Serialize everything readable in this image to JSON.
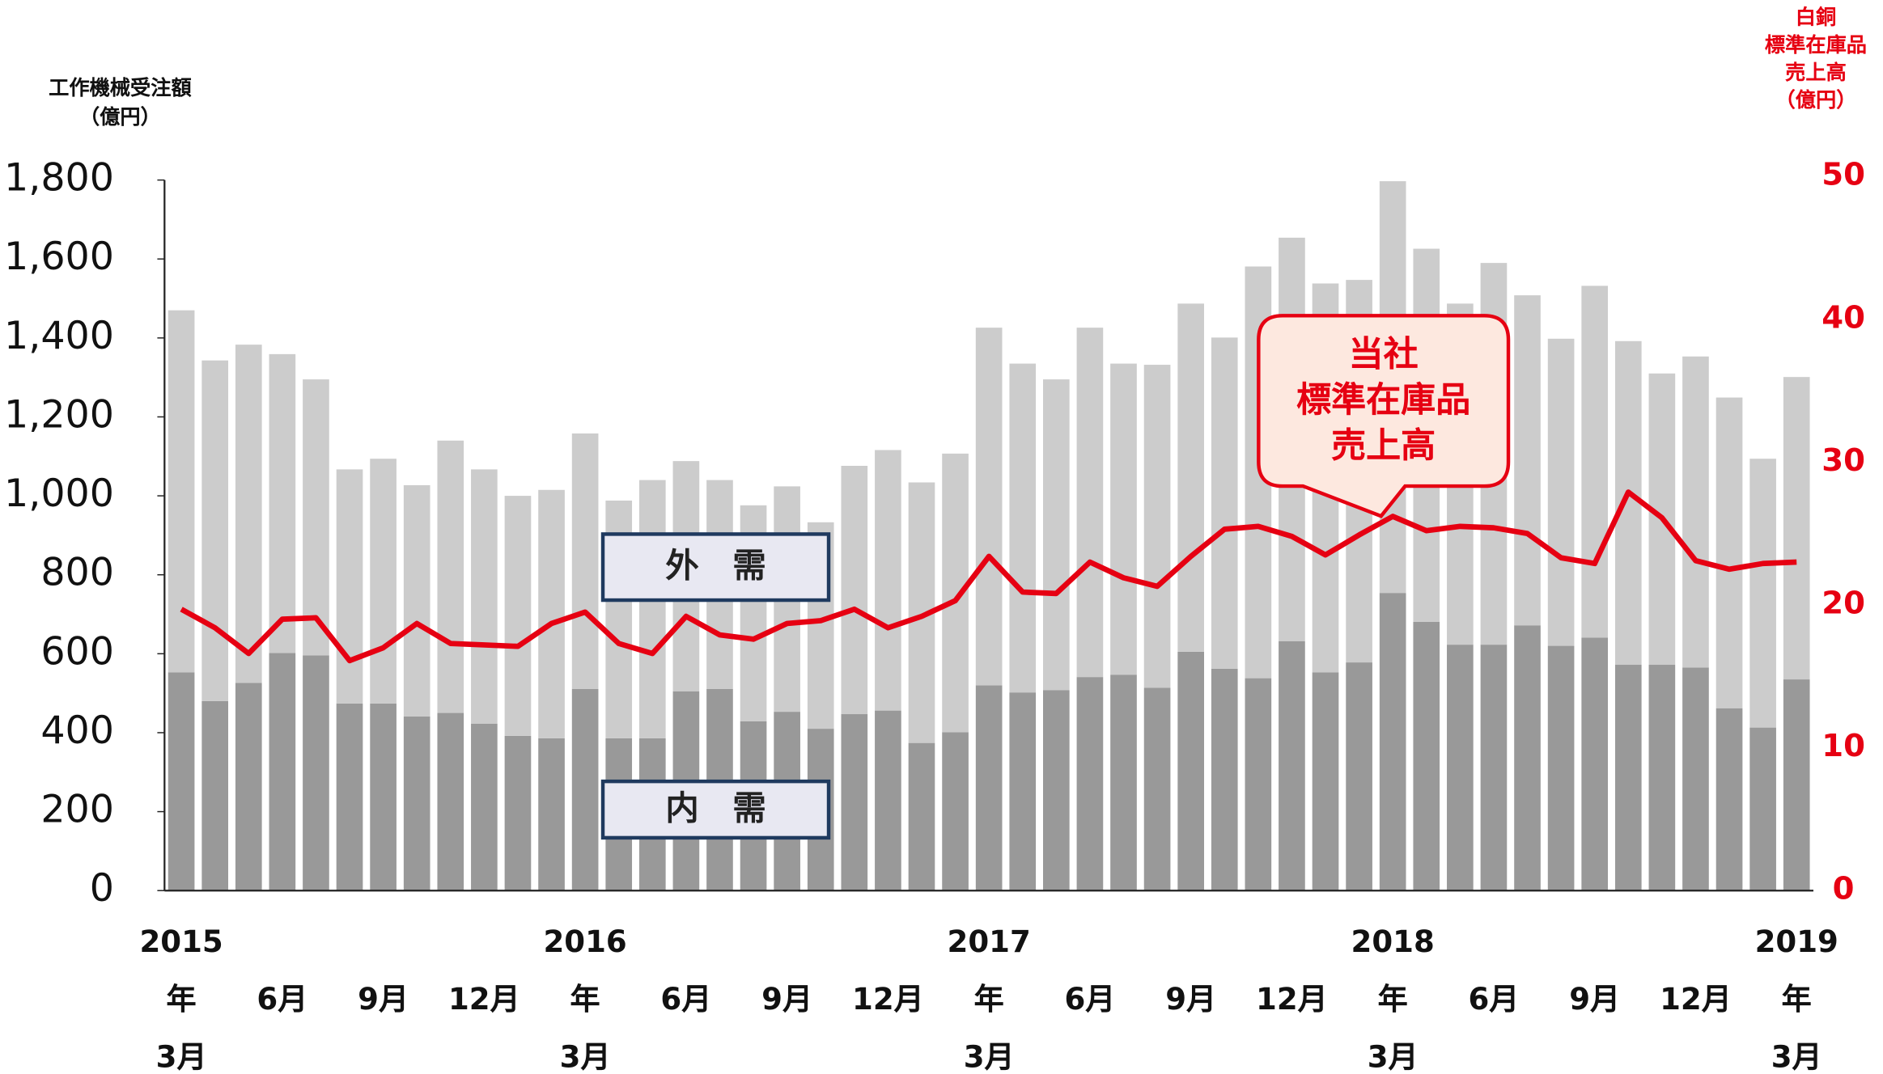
{
  "chart_data": {
    "type": "bar_line",
    "y_axis_label": "工作機械受注額\n（億円）",
    "y2_axis_label": "白銅\n標準在庫品\n売上高\n（億円）",
    "categories": [
      "2015\n年\n3月",
      null,
      null,
      "6月",
      null,
      null,
      "9月",
      null,
      null,
      "12月",
      null,
      null,
      "2016\n年\n3月",
      null,
      null,
      "6月",
      null,
      null,
      "9月",
      null,
      null,
      "12月",
      null,
      null,
      "2017\n年\n3月",
      null,
      null,
      "6月",
      null,
      null,
      "9月",
      null,
      null,
      "12月",
      null,
      null,
      "2018\n年\n3月",
      null,
      null,
      "6月",
      null,
      null,
      "9月",
      null,
      null,
      "12月",
      null,
      null,
      "2019\n年\n3月"
    ],
    "series": [
      {
        "name": "内　需",
        "type": "bar",
        "color": "#999999",
        "values": [
          553,
          480,
          526,
          602,
          596,
          474,
          474,
          441,
          450,
          423,
          392,
          386,
          511,
          386,
          386,
          505,
          511,
          429,
          453,
          410,
          447,
          456,
          374,
          401,
          520,
          502,
          508,
          541,
          547,
          514,
          605,
          562,
          538,
          632,
          553,
          578,
          754,
          681,
          623,
          623,
          672,
          620,
          641,
          572,
          572,
          565,
          462,
          413,
          535
        ]
      },
      {
        "name": "外　需",
        "type": "bar",
        "color": "#cccccc",
        "values": [
          917,
          863,
          857,
          757,
          699,
          593,
          620,
          586,
          690,
          644,
          608,
          629,
          647,
          602,
          654,
          583,
          529,
          547,
          571,
          523,
          629,
          660,
          660,
          706,
          906,
          833,
          787,
          885,
          788,
          818,
          882,
          839,
          1043,
          1022,
          985,
          969,
          1043,
          945,
          864,
          967,
          836,
          778,
          891,
          820,
          738,
          788,
          787,
          681,
          766
        ]
      },
      {
        "name": "当社\n標準在庫品\n売上高",
        "type": "line",
        "axis": "y2",
        "color": "#e60012",
        "values": [
          19.7,
          18.4,
          16.6,
          19.0,
          19.1,
          16.1,
          17.0,
          18.7,
          17.3,
          17.2,
          17.1,
          18.7,
          19.5,
          17.3,
          16.6,
          19.2,
          17.9,
          17.6,
          18.7,
          18.9,
          19.7,
          18.4,
          19.2,
          20.3,
          23.4,
          20.9,
          20.8,
          23.0,
          21.9,
          21.3,
          23.4,
          25.3,
          25.5,
          24.8,
          23.5,
          24.9,
          26.2,
          25.2,
          25.5,
          25.4,
          25.0,
          23.3,
          22.9,
          27.9,
          26.1,
          23.1,
          22.5,
          22.9,
          23.0
        ]
      }
    ],
    "stacked": true,
    "ylim": [
      0,
      1800
    ],
    "yticks": [
      0,
      200,
      400,
      600,
      800,
      {
        "value": 1000,
        "label": "1,000"
      },
      {
        "value": 1200,
        "label": "1,200"
      },
      {
        "value": 1400,
        "label": "1,400"
      },
      {
        "value": 1600,
        "label": "1,600"
      },
      {
        "value": 1800,
        "label": "1,800"
      }
    ],
    "y2lim": [
      0,
      50
    ],
    "y2ticks": [
      0,
      10,
      20,
      30,
      40,
      50
    ],
    "y2_color": "#e60012"
  }
}
